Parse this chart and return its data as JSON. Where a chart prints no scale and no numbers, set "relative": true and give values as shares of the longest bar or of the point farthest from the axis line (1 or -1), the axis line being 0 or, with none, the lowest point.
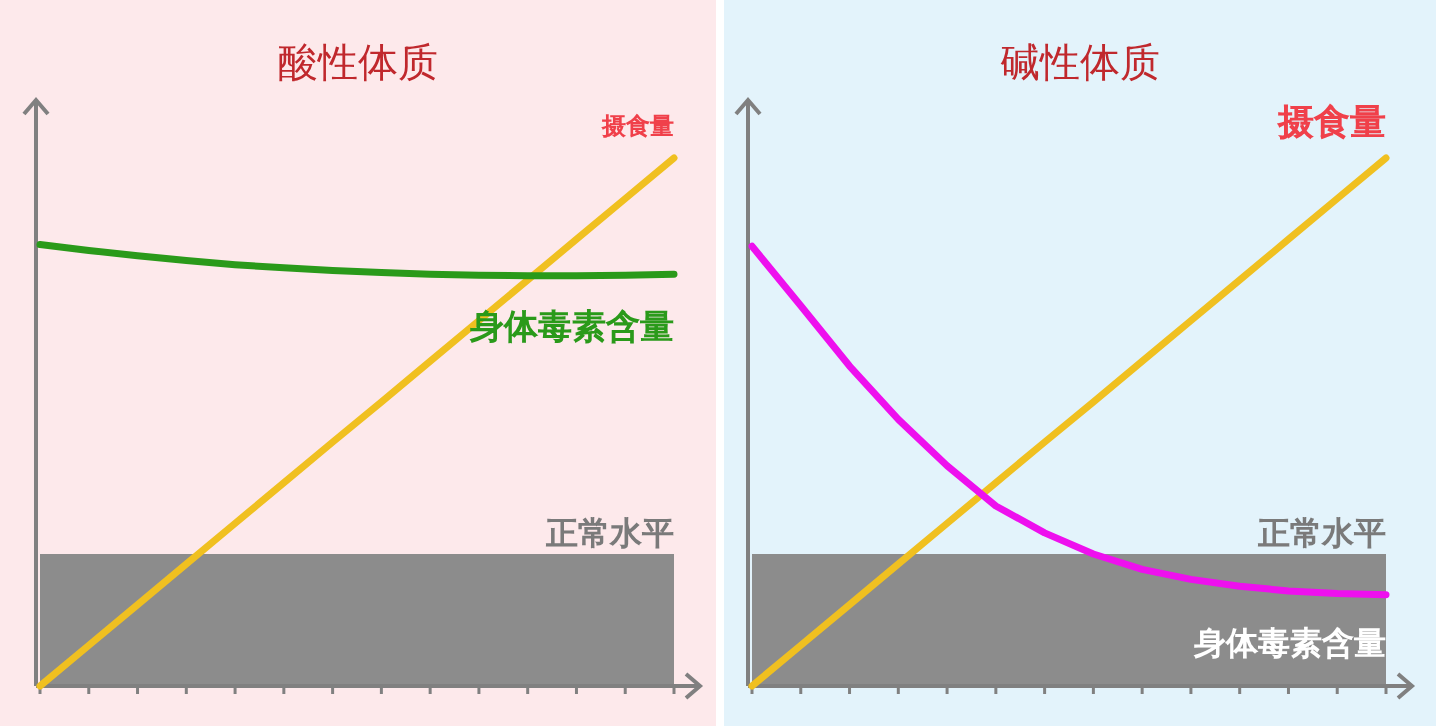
{
  "chart_data": [
    {
      "type": "line",
      "title": "酸性体质",
      "relative": true,
      "categories": [
        null,
        null,
        null,
        null,
        null,
        null,
        null,
        null,
        null,
        null,
        null,
        null,
        null,
        null
      ],
      "series": [
        {
          "name": "摄食量",
          "color": "#f0c020",
          "values": [
            0,
            0.077,
            0.154,
            0.231,
            0.308,
            0.385,
            0.462,
            0.538,
            0.615,
            0.692,
            0.769,
            0.846,
            0.923,
            1
          ]
        },
        {
          "name": "身体毒素含量",
          "color": "#2a9a1a",
          "values": [
            0.836,
            0.825,
            0.815,
            0.806,
            0.798,
            0.792,
            0.787,
            0.783,
            0.78,
            0.778,
            0.777,
            0.777,
            0.778,
            0.78
          ]
        }
      ],
      "bands": [
        {
          "axis": "y",
          "from": 0,
          "to": 0.25,
          "label": "正常水平",
          "color": "#8c8c8c"
        }
      ],
      "legend": false,
      "grid": false,
      "marker": "none",
      "line_style": "solid"
    },
    {
      "type": "line",
      "title": "碱性体质",
      "relative": true,
      "categories": [
        null,
        null,
        null,
        null,
        null,
        null,
        null,
        null,
        null,
        null,
        null,
        null,
        null,
        null
      ],
      "series": [
        {
          "name": "摄食量",
          "color": "#f0c020",
          "values": [
            0,
            0.077,
            0.154,
            0.231,
            0.308,
            0.385,
            0.462,
            0.538,
            0.615,
            0.692,
            0.769,
            0.846,
            0.923,
            1
          ]
        },
        {
          "name": "身体毒素含量",
          "color": "#ee10ee",
          "values": [
            0.833,
            0.72,
            0.606,
            0.505,
            0.417,
            0.341,
            0.29,
            0.25,
            0.221,
            0.202,
            0.189,
            0.18,
            0.175,
            0.173
          ]
        }
      ],
      "bands": [
        {
          "axis": "y",
          "from": 0,
          "to": 0.25,
          "label": "正常水平",
          "color": "#8c8c8c"
        }
      ],
      "legend": false,
      "grid": false,
      "marker": "none",
      "line_style": "solid"
    }
  ]
}
